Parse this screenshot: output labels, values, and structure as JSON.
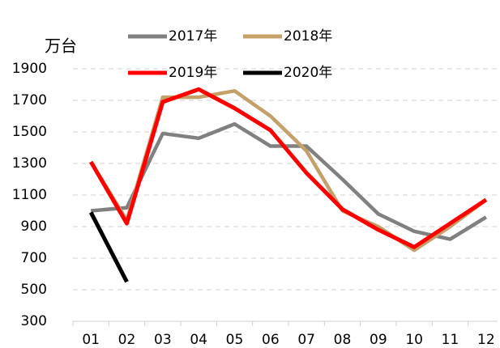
{
  "chart_data": {
    "type": "line",
    "y_label": "万台",
    "categories": [
      "01",
      "02",
      "03",
      "04",
      "05",
      "06",
      "07",
      "08",
      "09",
      "10",
      "11",
      "12"
    ],
    "series": [
      {
        "name": "2017年",
        "color": "#808080",
        "values": [
          1000,
          1020,
          1490,
          1460,
          1550,
          1410,
          1410,
          1200,
          980,
          870,
          820,
          960
        ]
      },
      {
        "name": "2018年",
        "color": "#c4a06a",
        "values": [
          1310,
          940,
          1720,
          1720,
          1760,
          1600,
          1380,
          1000,
          900,
          750,
          900,
          1070
        ]
      },
      {
        "name": "2019年",
        "color": "#ff0000",
        "values": [
          1310,
          920,
          1690,
          1770,
          1650,
          1510,
          1240,
          1010,
          880,
          770,
          920,
          1070
        ]
      },
      {
        "name": "2020年",
        "color": "#000000",
        "values": [
          990,
          550,
          null,
          null,
          null,
          null,
          null,
          null,
          null,
          null,
          null,
          null
        ]
      }
    ],
    "ylim": [
      300,
      1900
    ],
    "yticks": [
      300,
      500,
      700,
      900,
      1100,
      1300,
      1500,
      1700,
      1900
    ],
    "grid": true
  }
}
